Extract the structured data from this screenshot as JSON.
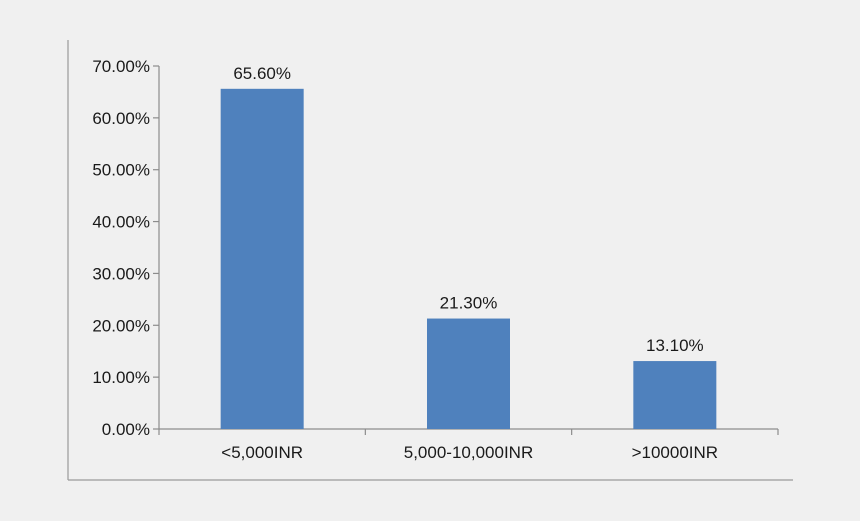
{
  "chart_data": {
    "type": "bar",
    "title": "",
    "xlabel": "",
    "ylabel": "",
    "categories": [
      "<5,000INR",
      "5,000-10,000INR",
      ">10000INR"
    ],
    "values": [
      65.6,
      21.3,
      13.1
    ],
    "data_labels": [
      "65.60%",
      "21.30%",
      "13.10%"
    ],
    "ylim": [
      0,
      70
    ],
    "y_ticks": [
      0,
      10,
      20,
      30,
      40,
      50,
      60,
      70
    ],
    "y_tick_labels": [
      "0.00%",
      "10.00%",
      "20.00%",
      "30.00%",
      "40.00%",
      "50.00%",
      "60.00%",
      "70.00%"
    ],
    "grid": false,
    "legend": "none",
    "colors": {
      "bar": "#4f81bd",
      "axis": "#8c8c8c",
      "frame": "#9a9a9a",
      "background": "#f0f0f0"
    }
  }
}
